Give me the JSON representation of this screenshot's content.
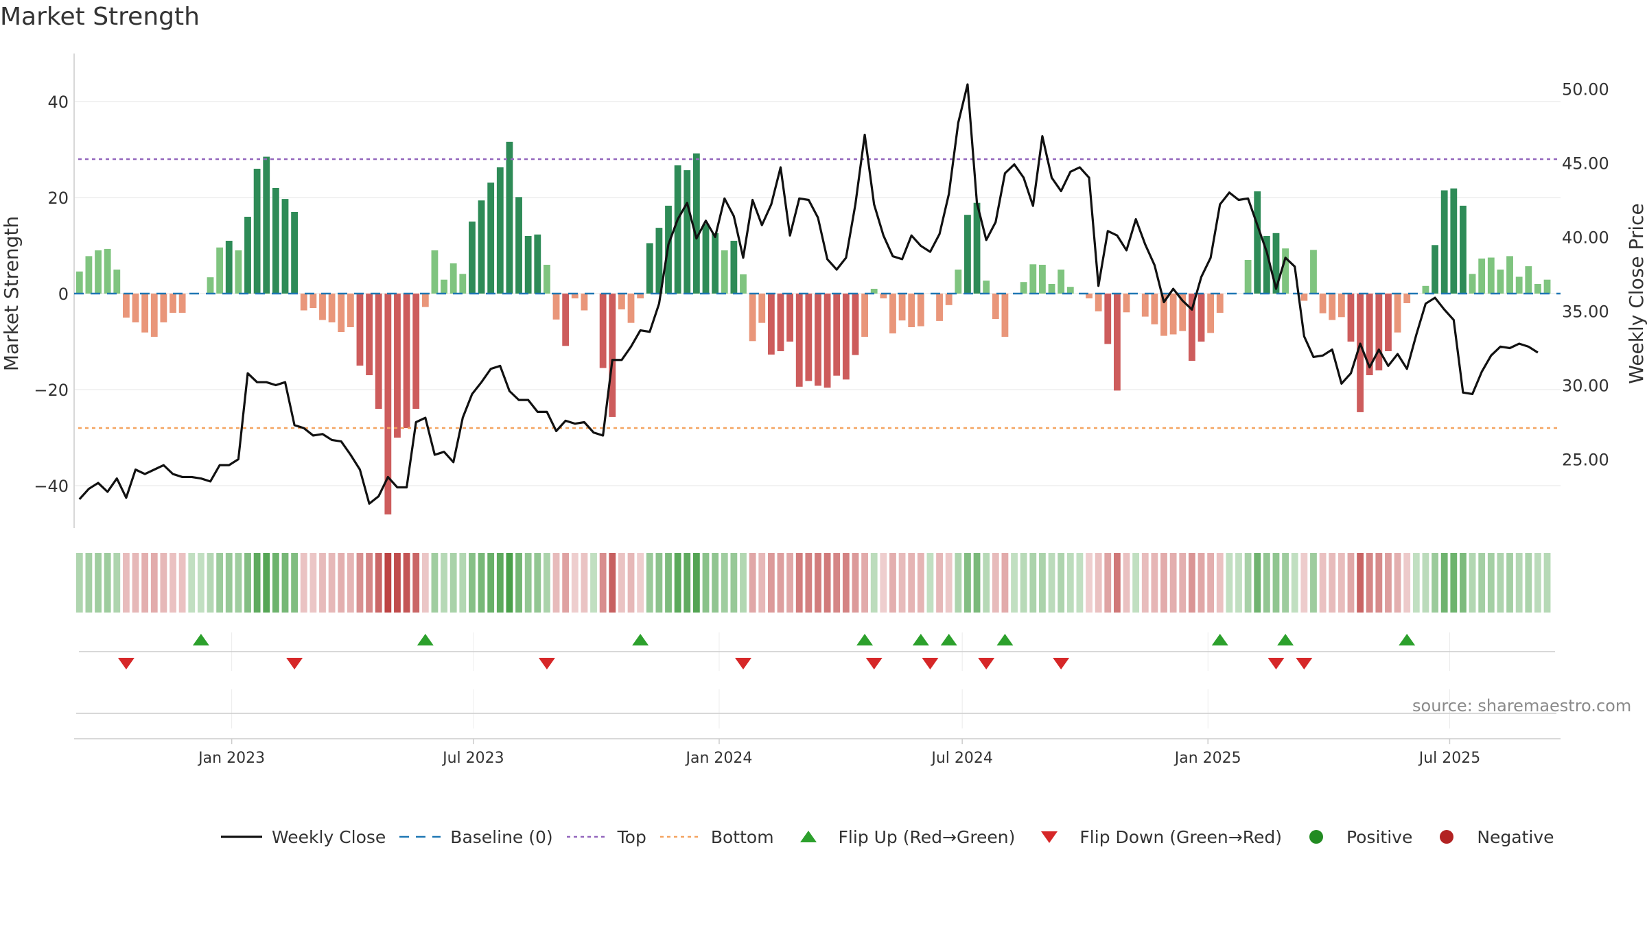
{
  "title": "Market Strength",
  "source": "source: sharemaestro.com",
  "colors": {
    "strong_pos": "#2e8b57",
    "weak_pos": "#7fc47f",
    "strong_neg": "#cd5c5c",
    "weak_neg": "#e9967a",
    "close": "#111111",
    "baseline": "#1f77b4",
    "top": "#9467bd",
    "bottom": "#f4a460",
    "flip_up": "#2ca02c",
    "flip_down": "#d62728",
    "positive": "#228b22",
    "negative": "#b22222"
  },
  "chart_data": {
    "type": "bar+line",
    "x_start": "2022-09-09",
    "x_interval_days": 7,
    "x_range": [
      "2022-09-05",
      "2025-09-22"
    ],
    "x_tick_labels": [
      "Jan 2023",
      "Jul 2023",
      "Jan 2024",
      "Jul 2024",
      "Jan 2025",
      "Jul 2025"
    ],
    "x_tick_dates": [
      "2023-01-01",
      "2023-07-01",
      "2024-01-01",
      "2024-07-01",
      "2025-01-01",
      "2025-07-01"
    ],
    "y_left_label": "Market Strength",
    "y_left_range": [
      -50,
      50
    ],
    "y_left_ticks": [
      40,
      20,
      0,
      -20,
      -40
    ],
    "y_left_tick_labels": [
      "40",
      "20",
      "0",
      "−20",
      "−40"
    ],
    "y_right_label": "Weekly Close Price",
    "y_right_range": [
      20.0,
      52.0
    ],
    "y_right_ticks": [
      50,
      45,
      40,
      35,
      30,
      25
    ],
    "y_right_tick_labels": [
      "50.00",
      "45.00",
      "40.00",
      "35.00",
      "30.00",
      "25.00"
    ],
    "top_level": 28,
    "bottom_level": -28,
    "strength": [
      4.6,
      7.8,
      9,
      9.3,
      5,
      -5,
      -6,
      -8.1,
      -9,
      -6,
      -4,
      -4,
      0,
      0,
      3.4,
      9.6,
      11,
      9,
      16,
      26,
      28.5,
      22,
      19.7,
      17,
      -3.5,
      -3,
      -5.5,
      -6,
      -8,
      -7,
      -15,
      -17,
      -24,
      -46,
      -30,
      -28,
      -24,
      -2.8,
      9,
      2.9,
      6.3,
      4.1,
      15,
      19.4,
      23.1,
      26.3,
      31.6,
      20.1,
      12,
      12.3,
      6,
      -5.4,
      -10.9,
      -1,
      -3.5,
      0,
      -15.5,
      -25.7,
      -3.3,
      -6.1,
      -1,
      10.5,
      13.7,
      18.3,
      26.7,
      25.7,
      29.2,
      14.5,
      12.6,
      9,
      11,
      4,
      -9.9,
      -6.1,
      -12.7,
      -12,
      -10,
      -19.4,
      -18.2,
      -19.2,
      -19.6,
      -17.1,
      -17.9,
      -12.8,
      -9,
      1,
      -1,
      -8.3,
      -5.6,
      -7,
      -6.8,
      0,
      -5.7,
      -2.4,
      5,
      16.4,
      18.9,
      2.7,
      -5.3,
      -9,
      0,
      2.4,
      6.1,
      6,
      2,
      5,
      1.4,
      0,
      -1,
      -3.7,
      -10.5,
      -20.2,
      -3.9,
      0,
      -4.8,
      -6.4,
      -8.8,
      -8.5,
      -7.8,
      -14,
      -10,
      -8.2,
      -4,
      0,
      0,
      7,
      21.3,
      12,
      12.6,
      9.4,
      0,
      -1.5,
      9.1,
      -4.1,
      -5.5,
      -4.9,
      -10,
      -24.7,
      -17,
      -16,
      -12,
      -8.1,
      -2,
      0,
      1.6,
      10.1,
      21.5,
      21.9,
      18.3,
      4.1,
      7.3,
      7.5,
      5,
      7.8,
      3.5,
      5.7,
      2,
      2.9
    ],
    "weekly_close": [
      22.3,
      23.0,
      23.4,
      22.8,
      23.7,
      22.4,
      24.3,
      24.0,
      24.3,
      24.6,
      24.0,
      23.8,
      23.8,
      23.7,
      23.5,
      24.6,
      24.6,
      25.0,
      30.8,
      30.2,
      30.2,
      30.0,
      30.2,
      27.3,
      27.1,
      26.6,
      26.7,
      26.3,
      26.2,
      25.3,
      24.3,
      22.0,
      22.5,
      23.8,
      23.1,
      23.1,
      27.5,
      27.8,
      25.3,
      25.5,
      24.8,
      27.8,
      29.4,
      30.2,
      31.1,
      31.3,
      29.6,
      29.0,
      29.0,
      28.2,
      28.2,
      26.9,
      27.6,
      27.4,
      27.5,
      26.8,
      26.6,
      31.7,
      31.7,
      32.6,
      33.7,
      33.6,
      35.5,
      39.5,
      41.2,
      42.3,
      39.9,
      41.1,
      40.0,
      42.6,
      41.4,
      38.6,
      42.5,
      40.8,
      42.2,
      44.7,
      40.1,
      42.6,
      42.5,
      41.3,
      38.5,
      37.8,
      38.6,
      42.2,
      46.9,
      42.2,
      40.1,
      38.7,
      38.5,
      40.1,
      39.4,
      39.0,
      40.2,
      42.9,
      47.7,
      50.3,
      42.3,
      39.8,
      41.0,
      44.3,
      44.9,
      44.0,
      42.1,
      46.8,
      44.0,
      43.1,
      44.4,
      44.7,
      44.0,
      36.7,
      40.4,
      40.1,
      39.1,
      41.2,
      39.5,
      38.1,
      35.6,
      36.5,
      35.7,
      35.1,
      37.3,
      38.6,
      42.2,
      43.0,
      42.5,
      42.6,
      40.8,
      39.0,
      36.5,
      38.6,
      38.0,
      33.3,
      31.9,
      32.0,
      32.4,
      30.1,
      30.8,
      32.8,
      31.2,
      32.4,
      31.3,
      32.1,
      31.1,
      33.4,
      35.5,
      35.9,
      35.1,
      34.4,
      29.5,
      29.4,
      30.9,
      32.0,
      32.6,
      32.5,
      32.8,
      32.6,
      32.2
    ],
    "flip_up_indices": [
      13,
      37,
      60,
      84,
      90,
      93,
      99,
      122,
      129,
      142
    ],
    "flip_down_indices": [
      5,
      23,
      50,
      71,
      85,
      91,
      97,
      105,
      128,
      131
    ]
  },
  "legend": [
    {
      "kind": "line",
      "label": "Weekly Close"
    },
    {
      "kind": "baseline",
      "label": "Baseline (0)"
    },
    {
      "kind": "top",
      "label": "Top"
    },
    {
      "kind": "bottom",
      "label": "Bottom"
    },
    {
      "kind": "flip_up",
      "label": "Flip Up (Red→Green)"
    },
    {
      "kind": "flip_down",
      "label": "Flip Down (Green→Red)"
    },
    {
      "kind": "positive",
      "label": "Positive"
    },
    {
      "kind": "negative",
      "label": "Negative"
    }
  ]
}
